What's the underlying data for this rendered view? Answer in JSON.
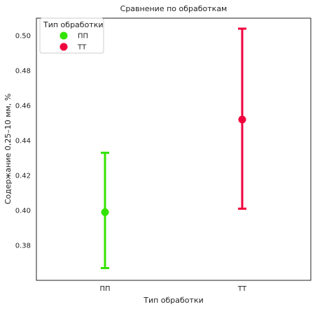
{
  "chart_data": {
    "type": "scatter",
    "title": "Сравнение по обработкам",
    "xlabel": "Тип обработки",
    "ylabel": "Содержание 0,25–10 мм, %",
    "categories": [
      "ПП",
      "ТТ"
    ],
    "ylim": [
      0.36,
      0.51
    ],
    "yticks": [
      "0.38",
      "0.40",
      "0.42",
      "0.44",
      "0.46",
      "0.48",
      "0.50"
    ],
    "grid": false,
    "legend": {
      "title": "Тип обработки",
      "placement": "top-left"
    },
    "series": [
      {
        "name": "ПП",
        "color": "#33e300",
        "value": 0.399,
        "ci_low": 0.367,
        "ci_high": 0.433
      },
      {
        "name": "ТТ",
        "color": "#f0003c",
        "value": 0.452,
        "ci_low": 0.401,
        "ci_high": 0.504
      }
    ]
  }
}
